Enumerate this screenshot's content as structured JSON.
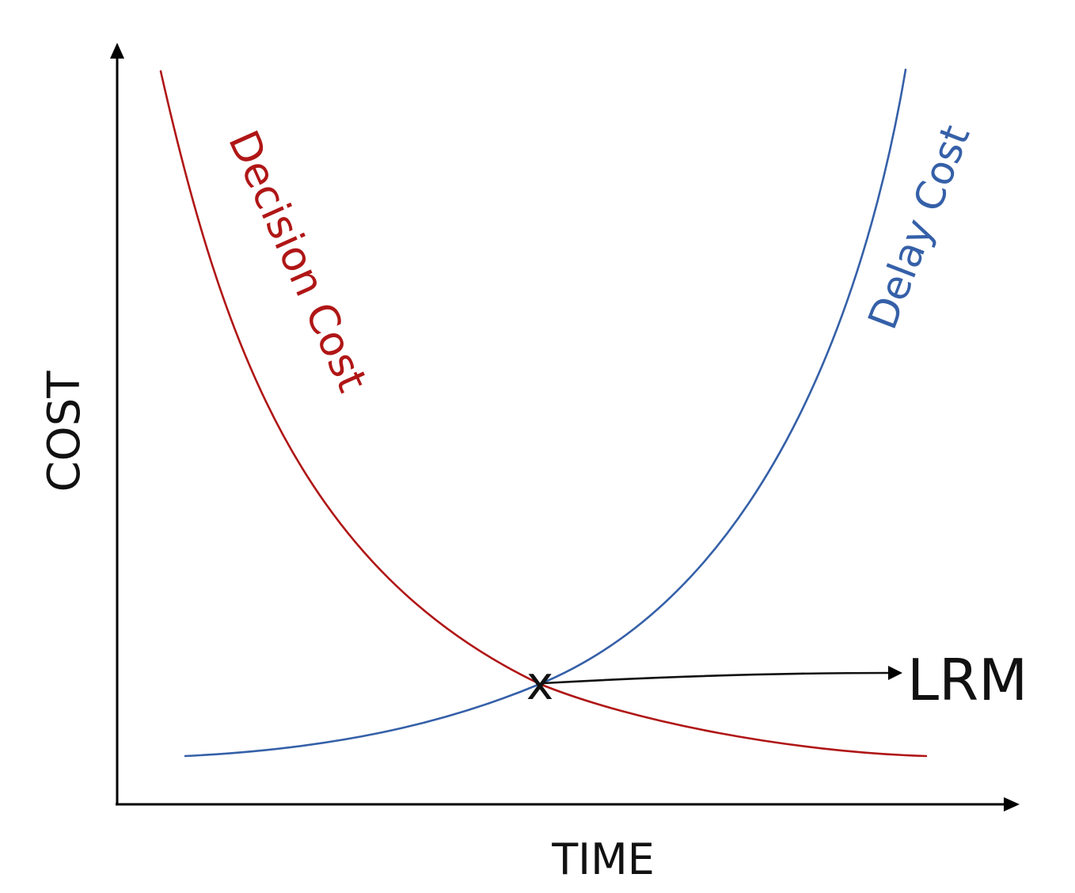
{
  "axes": {
    "y_label": "COST",
    "x_label": "TIME"
  },
  "curves": {
    "decision": {
      "label": "Decision Cost",
      "color": "#b01616"
    },
    "delay": {
      "label": "Delay Cost",
      "color": "#3560a8"
    }
  },
  "intersection": {
    "marker": "x",
    "label": "LRM"
  },
  "colors": {
    "axis": "#000000",
    "text": "#111111"
  }
}
